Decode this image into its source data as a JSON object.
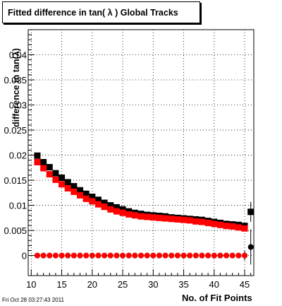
{
  "title": "Fitted difference in tan( λ )  Global Tracks",
  "footer_date": "Fri Oct 28 03:27:43 2011",
  "chart_data": {
    "type": "scatter",
    "xlabel": "No. of Fit Points",
    "ylabel": "difference in tan(λ)",
    "xlim": [
      9.5,
      46.5
    ],
    "ylim": [
      -0.004,
      0.045
    ],
    "x_ticks": [
      10,
      15,
      20,
      25,
      30,
      35,
      40,
      45
    ],
    "y_ticks": [
      0,
      0.005,
      0.01,
      0.015,
      0.02,
      0.025,
      0.03,
      0.035,
      0.04
    ],
    "y_tick_labels": [
      "0",
      "0.005",
      "0.01",
      "0.015",
      "0.02",
      "0.025",
      "0.03",
      "0.035",
      "0.04"
    ],
    "grid": true,
    "colors": {
      "black": "#000000",
      "red": "#ff0000"
    },
    "series": [
      {
        "color": "#000000",
        "marker": "square",
        "x": [
          11,
          12,
          13,
          14,
          15,
          16,
          17,
          18,
          19,
          20,
          21,
          22,
          23,
          24,
          25,
          26,
          27,
          28,
          29,
          30,
          31,
          32,
          33,
          34,
          35,
          36,
          37,
          38,
          39,
          40,
          41,
          42,
          43,
          44,
          45,
          46
        ],
        "y": [
          0.0199,
          0.0186,
          0.0176,
          0.0164,
          0.0155,
          0.0146,
          0.0138,
          0.013,
          0.0123,
          0.0117,
          0.0111,
          0.0105,
          0.01,
          0.0096,
          0.0092,
          0.0088,
          0.0085,
          0.0083,
          0.0081,
          0.008,
          0.0079,
          0.0078,
          0.0076,
          0.0075,
          0.0074,
          0.0073,
          0.0072,
          0.0071,
          0.0069,
          0.0067,
          0.0065,
          0.0063,
          0.0062,
          0.0061,
          0.0059,
          0.0087
        ],
        "yerr": [
          0,
          0,
          0,
          0,
          0,
          0,
          0,
          0,
          0,
          0,
          0,
          0,
          0,
          0,
          0,
          0,
          0,
          0,
          0,
          0,
          0,
          0,
          0,
          0,
          0,
          0,
          0,
          0,
          0,
          0,
          0,
          0,
          0,
          0,
          0,
          0.002
        ]
      },
      {
        "color": "#ff0000",
        "marker": "square",
        "x": [
          11,
          12,
          13,
          14,
          15,
          16,
          17,
          18,
          19,
          20,
          21,
          22,
          23,
          24,
          25,
          26,
          27,
          28,
          29,
          30,
          31,
          32,
          33,
          34,
          35,
          36,
          37,
          38,
          39,
          40,
          41,
          42,
          43,
          44,
          45
        ],
        "y": [
          0.0186,
          0.0174,
          0.0162,
          0.0151,
          0.0142,
          0.0134,
          0.0127,
          0.012,
          0.0113,
          0.0108,
          0.0102,
          0.0097,
          0.0092,
          0.0088,
          0.0085,
          0.0082,
          0.008,
          0.0078,
          0.0077,
          0.0076,
          0.0075,
          0.0074,
          0.0073,
          0.0072,
          0.0071,
          0.007,
          0.0068,
          0.0067,
          0.0065,
          0.0063,
          0.0061,
          0.0059,
          0.0058,
          0.0056,
          0.0054
        ]
      },
      {
        "color": "#000000",
        "marker": "circle",
        "x": [
          11,
          12,
          13,
          14,
          15,
          16,
          17,
          18,
          19,
          20,
          21,
          22,
          23,
          24,
          25,
          26,
          27,
          28,
          29,
          30,
          31,
          32,
          33,
          34,
          35,
          36,
          37,
          38,
          39,
          40,
          41,
          42,
          43,
          44,
          45,
          46
        ],
        "y": [
          0,
          0,
          0,
          0,
          0,
          0,
          0,
          0,
          0,
          0,
          0,
          0,
          0,
          0,
          0,
          0,
          0,
          0,
          0,
          0,
          0,
          0,
          0,
          0,
          0,
          0,
          0,
          0,
          0,
          0,
          0,
          0,
          0,
          0,
          0,
          0.0017
        ],
        "yerr": [
          0,
          0,
          0,
          0,
          0,
          0,
          0,
          0,
          0,
          0,
          0,
          0,
          0,
          0,
          0,
          0,
          0,
          0,
          0,
          0,
          0,
          0,
          0,
          0,
          0,
          0,
          0,
          0,
          0,
          0,
          0,
          0,
          0,
          0,
          0.001,
          0.0035
        ]
      },
      {
        "color": "#ff0000",
        "marker": "circle",
        "x": [
          11,
          12,
          13,
          14,
          15,
          16,
          17,
          18,
          19,
          20,
          21,
          22,
          23,
          24,
          25,
          26,
          27,
          28,
          29,
          30,
          31,
          32,
          33,
          34,
          35,
          36,
          37,
          38,
          39,
          40,
          41,
          42,
          43,
          44,
          45
        ],
        "y": [
          0,
          0,
          0,
          0,
          0,
          0,
          0,
          0,
          0,
          0,
          0,
          0,
          0,
          0,
          0,
          0,
          0,
          0,
          0,
          0,
          0,
          0,
          0,
          0,
          0,
          0,
          0,
          0,
          0,
          0,
          0,
          0,
          0,
          0,
          0
        ]
      }
    ]
  }
}
